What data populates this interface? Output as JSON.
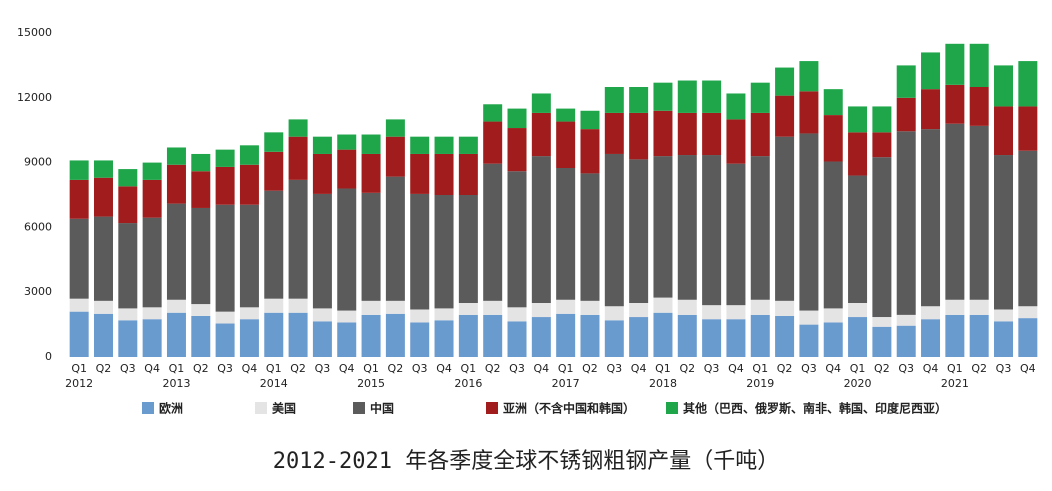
{
  "chart_data": {
    "type": "stacked_bar",
    "title": "2012-2021 年各季度全球不锈钢粗钢产量（千吨）",
    "categories": [
      "Q1",
      "Q2",
      "Q3",
      "Q4",
      "Q1",
      "Q2",
      "Q3",
      "Q4",
      "Q1",
      "Q2",
      "Q3",
      "Q4",
      "Q1",
      "Q2",
      "Q3",
      "Q4",
      "Q1",
      "Q2",
      "Q3",
      "Q4",
      "Q1",
      "Q2",
      "Q3",
      "Q4",
      "Q1",
      "Q2",
      "Q3",
      "Q4",
      "Q1",
      "Q2",
      "Q3",
      "Q4",
      "Q1",
      "Q2",
      "Q3",
      "Q4",
      "Q1",
      "Q2",
      "Q3",
      "Q4"
    ],
    "year_labels": [
      "2012",
      "2013",
      "2014",
      "2015",
      "2016",
      "2017",
      "2018",
      "2019",
      "2020",
      "2021"
    ],
    "ylim": [
      0,
      15000
    ],
    "yticks": [
      0,
      3000,
      6000,
      9000,
      12000,
      15000
    ],
    "grid": false,
    "series": [
      {
        "name": "欧洲",
        "color": "#6a9bcf",
        "values": [
          2100,
          2000,
          1700,
          1750,
          2050,
          1900,
          1550,
          1750,
          2050,
          2050,
          1650,
          1600,
          1950,
          2000,
          1600,
          1700,
          1950,
          1950,
          1650,
          1850,
          2000,
          1950,
          1700,
          1850,
          2050,
          1950,
          1750,
          1750,
          1950,
          1900,
          1500,
          1600,
          1850,
          1400,
          1450,
          1750,
          1950,
          1950,
          1650,
          1800
        ]
      },
      {
        "name": "美国",
        "color": "#e4e4e4",
        "values": [
          600,
          600,
          550,
          550,
          600,
          550,
          550,
          550,
          650,
          650,
          600,
          550,
          650,
          600,
          600,
          550,
          550,
          650,
          650,
          650,
          650,
          650,
          650,
          650,
          700,
          700,
          650,
          650,
          700,
          700,
          650,
          650,
          650,
          450,
          500,
          600,
          700,
          700,
          550,
          550
        ]
      },
      {
        "name": "中国",
        "color": "#5b5b5b",
        "values": [
          3700,
          3900,
          3950,
          4150,
          4450,
          4450,
          4950,
          4750,
          5000,
          5500,
          5300,
          5650,
          5000,
          5750,
          5350,
          5250,
          5000,
          6350,
          6300,
          6800,
          6100,
          5900,
          7050,
          6650,
          6550,
          6700,
          6950,
          6550,
          6650,
          7600,
          8200,
          6800,
          5900,
          7400,
          8500,
          8200,
          8150,
          8050,
          7150,
          7200
        ]
      },
      {
        "name": "亚洲（不含中国和韩国）",
        "color": "#a11d1d",
        "values": [
          1800,
          1800,
          1700,
          1750,
          1800,
          1700,
          1750,
          1850,
          1800,
          2000,
          1850,
          1800,
          1800,
          1850,
          1850,
          1900,
          1900,
          1950,
          2000,
          2000,
          2150,
          2050,
          1900,
          2150,
          2100,
          1950,
          1950,
          2050,
          2000,
          1900,
          1950,
          2150,
          2000,
          1150,
          1550,
          1850,
          1800,
          1800,
          2250,
          2050
        ]
      },
      {
        "name": "其他（巴西、俄罗斯、南非、韩国、印度尼西亚）",
        "color": "#1fa64a",
        "values": [
          900,
          800,
          800,
          800,
          800,
          800,
          800,
          900,
          900,
          800,
          800,
          700,
          900,
          800,
          800,
          800,
          800,
          800,
          900,
          900,
          600,
          850,
          1200,
          1200,
          1300,
          1500,
          1500,
          1200,
          1400,
          1300,
          1400,
          1200,
          1200,
          1200,
          1500,
          1700,
          1900,
          2000,
          1900,
          2100
        ]
      }
    ]
  }
}
